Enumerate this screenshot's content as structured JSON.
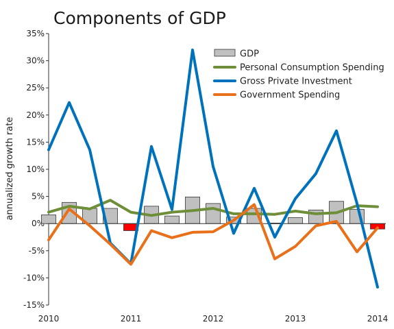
{
  "chart_data": {
    "type": "bar",
    "title": "Components of GDP",
    "ylabel": "annualized growth rate",
    "xlabel": "",
    "ylim": [
      -15,
      35
    ],
    "yticks": [
      -15,
      -10,
      -5,
      0,
      5,
      10,
      15,
      20,
      25,
      30,
      35
    ],
    "ytick_labels": [
      "-15%",
      "-10%",
      "-5%",
      "0%",
      "5%",
      "10%",
      "15%",
      "20%",
      "25%",
      "30%",
      "35%"
    ],
    "xlim": [
      2010.0,
      2014.1
    ],
    "xticks": [
      2010,
      2011,
      2012,
      2013,
      2014
    ],
    "xtick_labels": [
      "2010",
      "2011",
      "2012",
      "2013",
      "2014"
    ],
    "x": [
      2010.0,
      2010.25,
      2010.5,
      2010.75,
      2011.0,
      2011.25,
      2011.5,
      2011.75,
      2012.0,
      2012.25,
      2012.5,
      2012.75,
      2013.0,
      2013.25,
      2013.5,
      2013.75,
      2014.0
    ],
    "grid": false,
    "legend": "top-right",
    "series": [
      {
        "name": "GDP",
        "kind": "bar",
        "color": "#c0c0c0",
        "negative_color": "#ff0000",
        "values": [
          1.6,
          3.9,
          2.8,
          2.8,
          -1.3,
          3.2,
          1.4,
          4.9,
          3.7,
          1.2,
          2.8,
          0.1,
          1.1,
          2.5,
          4.1,
          2.6,
          -1.0
        ]
      },
      {
        "name": "Personal Consumption Spending",
        "kind": "line",
        "color": "#6f8e3a",
        "values": [
          2.1,
          3.2,
          2.7,
          4.3,
          2.1,
          1.5,
          2.1,
          2.4,
          2.8,
          1.8,
          1.8,
          1.7,
          2.3,
          1.8,
          2.0,
          3.3,
          3.1
        ]
      },
      {
        "name": "Gross Private Investment",
        "kind": "line",
        "color": "#0072bc",
        "values": [
          13.6,
          22.3,
          13.6,
          -3.6,
          -7.4,
          14.2,
          2.6,
          32.0,
          10.5,
          -1.8,
          6.5,
          -2.5,
          4.6,
          9.2,
          17.1,
          3.7,
          -11.7
        ]
      },
      {
        "name": "Government Spending",
        "kind": "line",
        "color": "#e8701a",
        "values": [
          -3.0,
          2.7,
          -0.4,
          -3.8,
          -7.5,
          -1.3,
          -2.6,
          -1.6,
          -1.5,
          0.6,
          3.5,
          -6.5,
          -4.2,
          -0.4,
          0.4,
          -5.2,
          -0.8
        ]
      }
    ]
  }
}
